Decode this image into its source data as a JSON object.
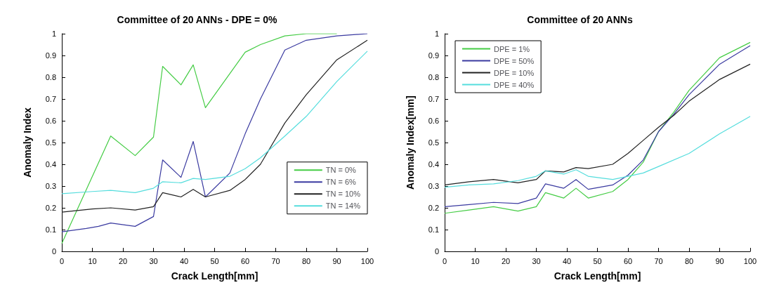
{
  "chart_data": [
    {
      "type": "line",
      "title": "Committee of 20 ANNs - DPE = 0%",
      "xlabel": "Crack Length[mm]",
      "ylabel": "Anomaly Index",
      "xlim": [
        0,
        100
      ],
      "xticks": [
        0,
        10,
        20,
        30,
        40,
        50,
        60,
        70,
        80,
        90,
        100
      ],
      "ylim": [
        0,
        1
      ],
      "yticks": [
        0,
        0.1,
        0.2,
        0.3,
        0.4,
        0.5,
        0.6,
        0.7,
        0.8,
        0.9,
        1
      ],
      "grid": false,
      "legend": "right",
      "marker": "none",
      "line_style": "solid",
      "series": [
        {
          "name": "TN = 0%",
          "color": "#44cc44",
          "x": [
            0,
            16,
            24,
            30,
            33,
            39,
            43,
            47,
            60,
            65,
            73,
            80,
            90
          ],
          "values": [
            0.036,
            0.53,
            0.44,
            0.525,
            0.85,
            0.765,
            0.857,
            0.66,
            0.915,
            0.95,
            0.99,
            1.0,
            1.0
          ]
        },
        {
          "name": "TN = 6%",
          "color": "#3a3aa0",
          "x": [
            0,
            8,
            12,
            16,
            24,
            30,
            33,
            39,
            43,
            47,
            55,
            60,
            65,
            73,
            80,
            90,
            100
          ],
          "values": [
            0.09,
            0.105,
            0.115,
            0.13,
            0.115,
            0.16,
            0.42,
            0.34,
            0.505,
            0.25,
            0.36,
            0.54,
            0.7,
            0.925,
            0.97,
            0.99,
            1.0
          ]
        },
        {
          "name": "TN = 10%",
          "color": "#222222",
          "x": [
            0,
            10,
            16,
            24,
            30,
            33,
            39,
            43,
            47,
            55,
            60,
            65,
            73,
            80,
            90,
            100
          ],
          "values": [
            0.18,
            0.195,
            0.2,
            0.19,
            0.205,
            0.27,
            0.25,
            0.285,
            0.25,
            0.28,
            0.33,
            0.4,
            0.59,
            0.72,
            0.88,
            0.97
          ]
        },
        {
          "name": "TN = 14%",
          "color": "#55dddd",
          "x": [
            0,
            10,
            16,
            24,
            30,
            33,
            39,
            43,
            47,
            55,
            60,
            65,
            73,
            80,
            90,
            100
          ],
          "values": [
            0.265,
            0.275,
            0.28,
            0.27,
            0.29,
            0.32,
            0.315,
            0.335,
            0.33,
            0.345,
            0.38,
            0.43,
            0.53,
            0.62,
            0.78,
            0.92
          ]
        }
      ]
    },
    {
      "type": "line",
      "title": "Committee of 20 ANNs",
      "xlabel": "Crack Length[mm]",
      "ylabel": "Anomaly Index[mm]",
      "xlim": [
        0,
        100
      ],
      "xticks": [
        0,
        10,
        20,
        30,
        40,
        50,
        60,
        70,
        80,
        90,
        100
      ],
      "ylim": [
        0,
        1
      ],
      "yticks": [
        0,
        0.1,
        0.2,
        0.3,
        0.4,
        0.5,
        0.6,
        0.7,
        0.8,
        0.9,
        1
      ],
      "grid": false,
      "legend": "top left",
      "marker": "none",
      "line_style": "solid",
      "series": [
        {
          "name": "DPE = 1%",
          "color": "#44cc44",
          "x": [
            0,
            8,
            16,
            24,
            30,
            33,
            39,
            43,
            47,
            55,
            60,
            65,
            70,
            75,
            80,
            90,
            100
          ],
          "values": [
            0.175,
            0.19,
            0.205,
            0.185,
            0.205,
            0.27,
            0.245,
            0.29,
            0.245,
            0.275,
            0.33,
            0.41,
            0.55,
            0.64,
            0.74,
            0.89,
            0.96
          ]
        },
        {
          "name": "DPE = 50%",
          "color": "#3a3aa0",
          "x": [
            0,
            8,
            16,
            24,
            30,
            33,
            39,
            43,
            47,
            55,
            60,
            65,
            70,
            75,
            80,
            90,
            100
          ],
          "values": [
            0.205,
            0.215,
            0.225,
            0.22,
            0.245,
            0.31,
            0.29,
            0.33,
            0.285,
            0.305,
            0.35,
            0.42,
            0.55,
            0.63,
            0.72,
            0.86,
            0.945
          ]
        },
        {
          "name": "DPE = 10%",
          "color": "#222222",
          "x": [
            0,
            8,
            16,
            24,
            30,
            33,
            39,
            43,
            47,
            55,
            60,
            65,
            70,
            75,
            80,
            90,
            100
          ],
          "values": [
            0.305,
            0.32,
            0.33,
            0.315,
            0.33,
            0.37,
            0.365,
            0.385,
            0.38,
            0.4,
            0.45,
            0.51,
            0.57,
            0.625,
            0.69,
            0.79,
            0.86
          ]
        },
        {
          "name": "DPE = 40%",
          "color": "#55dddd",
          "x": [
            0,
            8,
            16,
            24,
            30,
            33,
            39,
            43,
            47,
            55,
            60,
            65,
            70,
            80,
            90,
            100
          ],
          "values": [
            0.295,
            0.305,
            0.31,
            0.325,
            0.345,
            0.37,
            0.355,
            0.375,
            0.345,
            0.33,
            0.345,
            0.36,
            0.39,
            0.45,
            0.54,
            0.62
          ]
        }
      ]
    }
  ]
}
